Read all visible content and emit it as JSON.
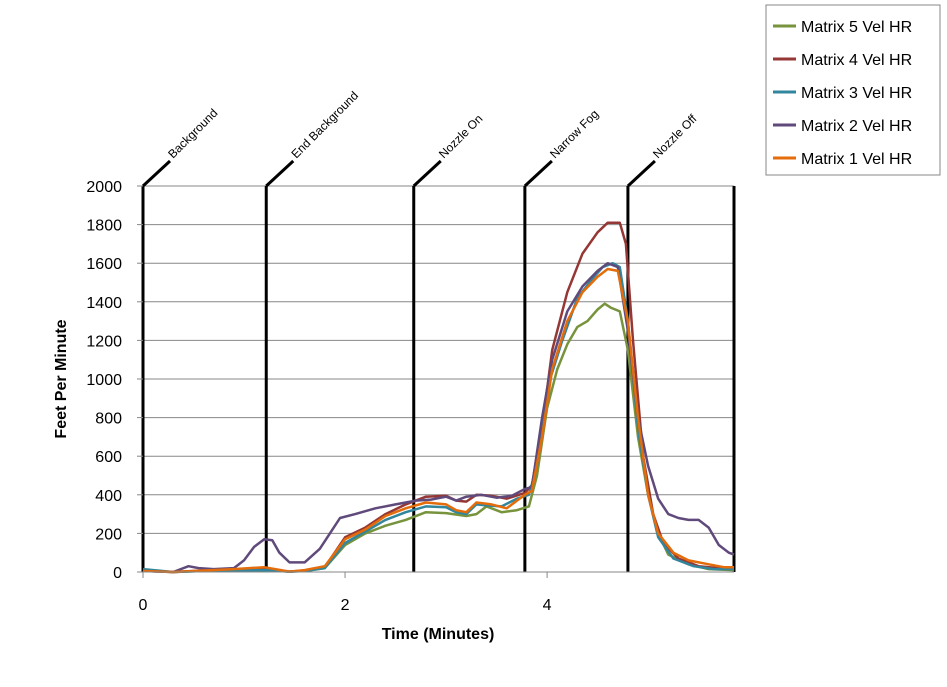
{
  "chart_data": {
    "type": "line",
    "xlabel": "Time (Minutes)",
    "ylabel": "Feet Per Minute",
    "xlim": [
      0,
      5.85
    ],
    "ylim": [
      0,
      2000
    ],
    "x_ticks": [
      0,
      2,
      4
    ],
    "y_ticks": [
      0,
      200,
      400,
      600,
      800,
      1000,
      1200,
      1400,
      1600,
      1800,
      2000
    ],
    "grid": "horizontal",
    "legend_position": "top-right",
    "events": [
      {
        "label": "Background",
        "x": 0.0
      },
      {
        "label": "End Background",
        "x": 1.22
      },
      {
        "label": "Nozzle On",
        "x": 2.68
      },
      {
        "label": "Narrow Fog",
        "x": 3.78
      },
      {
        "label": "Nozzle Off",
        "x": 4.8
      }
    ],
    "series": [
      {
        "name": "Matrix 5 Vel HR",
        "color": "#77933c",
        "points": [
          [
            0,
            10
          ],
          [
            0.1,
            5
          ],
          [
            0.3,
            0
          ],
          [
            0.6,
            5
          ],
          [
            0.9,
            8
          ],
          [
            1.2,
            10
          ],
          [
            1.45,
            2
          ],
          [
            1.6,
            5
          ],
          [
            1.8,
            20
          ],
          [
            2.0,
            140
          ],
          [
            2.2,
            200
          ],
          [
            2.4,
            240
          ],
          [
            2.6,
            270
          ],
          [
            2.8,
            310
          ],
          [
            3.0,
            305
          ],
          [
            3.2,
            290
          ],
          [
            3.3,
            300
          ],
          [
            3.4,
            340
          ],
          [
            3.55,
            310
          ],
          [
            3.7,
            320
          ],
          [
            3.82,
            340
          ],
          [
            3.9,
            500
          ],
          [
            4.0,
            850
          ],
          [
            4.1,
            1050
          ],
          [
            4.2,
            1180
          ],
          [
            4.3,
            1270
          ],
          [
            4.4,
            1300
          ],
          [
            4.5,
            1360
          ],
          [
            4.57,
            1390
          ],
          [
            4.63,
            1370
          ],
          [
            4.72,
            1350
          ],
          [
            4.8,
            1150
          ],
          [
            4.9,
            700
          ],
          [
            5.0,
            400
          ],
          [
            5.1,
            200
          ],
          [
            5.2,
            90
          ],
          [
            5.4,
            40
          ],
          [
            5.6,
            15
          ],
          [
            5.85,
            10
          ]
        ]
      },
      {
        "name": "Matrix 4 Vel HR",
        "color": "#953735",
        "points": [
          [
            0,
            5
          ],
          [
            0.3,
            0
          ],
          [
            0.6,
            8
          ],
          [
            0.9,
            10
          ],
          [
            1.2,
            15
          ],
          [
            1.45,
            2
          ],
          [
            1.6,
            8
          ],
          [
            1.8,
            25
          ],
          [
            2.0,
            180
          ],
          [
            2.2,
            230
          ],
          [
            2.4,
            300
          ],
          [
            2.6,
            350
          ],
          [
            2.8,
            390
          ],
          [
            3.0,
            395
          ],
          [
            3.1,
            370
          ],
          [
            3.2,
            365
          ],
          [
            3.3,
            400
          ],
          [
            3.45,
            395
          ],
          [
            3.6,
            380
          ],
          [
            3.78,
            410
          ],
          [
            3.85,
            450
          ],
          [
            3.95,
            750
          ],
          [
            4.05,
            1150
          ],
          [
            4.2,
            1450
          ],
          [
            4.35,
            1650
          ],
          [
            4.5,
            1760
          ],
          [
            4.6,
            1810
          ],
          [
            4.72,
            1810
          ],
          [
            4.78,
            1700
          ],
          [
            4.85,
            1200
          ],
          [
            4.95,
            600
          ],
          [
            5.05,
            300
          ],
          [
            5.15,
            150
          ],
          [
            5.3,
            70
          ],
          [
            5.5,
            30
          ],
          [
            5.7,
            20
          ],
          [
            5.85,
            20
          ]
        ]
      },
      {
        "name": "Matrix 3 Vel HR",
        "color": "#31859c",
        "points": [
          [
            0,
            15
          ],
          [
            0.3,
            0
          ],
          [
            0.6,
            5
          ],
          [
            0.9,
            8
          ],
          [
            1.2,
            10
          ],
          [
            1.45,
            2
          ],
          [
            1.6,
            5
          ],
          [
            1.8,
            20
          ],
          [
            2.0,
            150
          ],
          [
            2.2,
            210
          ],
          [
            2.4,
            270
          ],
          [
            2.6,
            310
          ],
          [
            2.8,
            340
          ],
          [
            3.0,
            335
          ],
          [
            3.1,
            310
          ],
          [
            3.2,
            300
          ],
          [
            3.3,
            350
          ],
          [
            3.4,
            345
          ],
          [
            3.55,
            340
          ],
          [
            3.7,
            380
          ],
          [
            3.82,
            400
          ],
          [
            3.9,
            550
          ],
          [
            4.0,
            950
          ],
          [
            4.15,
            1200
          ],
          [
            4.3,
            1420
          ],
          [
            4.45,
            1520
          ],
          [
            4.55,
            1580
          ],
          [
            4.65,
            1600
          ],
          [
            4.72,
            1580
          ],
          [
            4.8,
            1300
          ],
          [
            4.9,
            750
          ],
          [
            5.0,
            400
          ],
          [
            5.1,
            180
          ],
          [
            5.25,
            70
          ],
          [
            5.45,
            30
          ],
          [
            5.65,
            15
          ],
          [
            5.85,
            15
          ]
        ]
      },
      {
        "name": "Matrix 2 Vel HR",
        "color": "#604a7b",
        "points": [
          [
            0,
            5
          ],
          [
            0.3,
            0
          ],
          [
            0.45,
            30
          ],
          [
            0.55,
            20
          ],
          [
            0.7,
            15
          ],
          [
            0.9,
            20
          ],
          [
            1.0,
            60
          ],
          [
            1.1,
            130
          ],
          [
            1.2,
            170
          ],
          [
            1.28,
            165
          ],
          [
            1.35,
            100
          ],
          [
            1.45,
            50
          ],
          [
            1.6,
            50
          ],
          [
            1.75,
            120
          ],
          [
            1.85,
            200
          ],
          [
            1.95,
            280
          ],
          [
            2.1,
            300
          ],
          [
            2.3,
            330
          ],
          [
            2.5,
            350
          ],
          [
            2.7,
            370
          ],
          [
            2.85,
            375
          ],
          [
            3.0,
            390
          ],
          [
            3.1,
            370
          ],
          [
            3.2,
            390
          ],
          [
            3.35,
            400
          ],
          [
            3.5,
            385
          ],
          [
            3.65,
            395
          ],
          [
            3.78,
            430
          ],
          [
            3.85,
            440
          ],
          [
            3.95,
            800
          ],
          [
            4.05,
            1100
          ],
          [
            4.2,
            1350
          ],
          [
            4.35,
            1480
          ],
          [
            4.5,
            1560
          ],
          [
            4.6,
            1600
          ],
          [
            4.7,
            1580
          ],
          [
            4.8,
            1250
          ],
          [
            4.9,
            800
          ],
          [
            5.0,
            550
          ],
          [
            5.1,
            380
          ],
          [
            5.2,
            300
          ],
          [
            5.3,
            280
          ],
          [
            5.4,
            270
          ],
          [
            5.5,
            270
          ],
          [
            5.6,
            230
          ],
          [
            5.7,
            140
          ],
          [
            5.8,
            100
          ],
          [
            5.85,
            90
          ]
        ]
      },
      {
        "name": "Matrix 1 Vel HR",
        "color": "#e46c0a",
        "points": [
          [
            0,
            5
          ],
          [
            0.3,
            0
          ],
          [
            0.6,
            8
          ],
          [
            0.9,
            15
          ],
          [
            1.2,
            25
          ],
          [
            1.45,
            2
          ],
          [
            1.6,
            10
          ],
          [
            1.8,
            30
          ],
          [
            2.0,
            170
          ],
          [
            2.2,
            220
          ],
          [
            2.4,
            290
          ],
          [
            2.6,
            330
          ],
          [
            2.8,
            360
          ],
          [
            3.0,
            350
          ],
          [
            3.1,
            320
          ],
          [
            3.2,
            310
          ],
          [
            3.3,
            360
          ],
          [
            3.45,
            350
          ],
          [
            3.6,
            330
          ],
          [
            3.78,
            400
          ],
          [
            3.85,
            420
          ],
          [
            3.95,
            700
          ],
          [
            4.05,
            1050
          ],
          [
            4.2,
            1300
          ],
          [
            4.35,
            1450
          ],
          [
            4.5,
            1530
          ],
          [
            4.6,
            1570
          ],
          [
            4.7,
            1560
          ],
          [
            4.8,
            1300
          ],
          [
            4.9,
            800
          ],
          [
            5.0,
            400
          ],
          [
            5.1,
            200
          ],
          [
            5.25,
            100
          ],
          [
            5.4,
            60
          ],
          [
            5.6,
            40
          ],
          [
            5.75,
            25
          ],
          [
            5.85,
            25
          ]
        ]
      }
    ]
  }
}
